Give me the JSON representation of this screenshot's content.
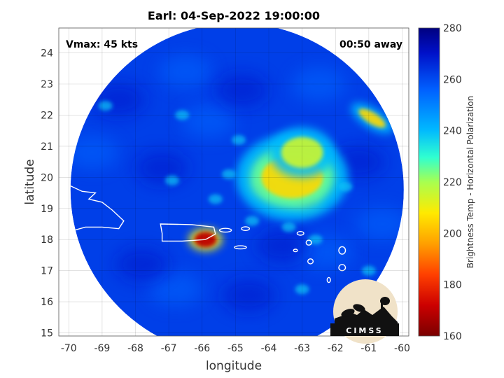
{
  "chart_data": {
    "type": "heatmap",
    "title": "Earl: 04-Sep-2022 19:00:00",
    "xlabel": "longitude",
    "ylabel": "latitude",
    "xlim": [
      -70.3,
      -59.8
    ],
    "ylim": [
      14.9,
      24.8
    ],
    "xticks": [
      -70,
      -69,
      -68,
      -67,
      -66,
      -65,
      -64,
      -63,
      -62,
      -61,
      -60
    ],
    "yticks": [
      15,
      16,
      17,
      18,
      19,
      20,
      21,
      22,
      23,
      24
    ],
    "grid": true,
    "annotations": {
      "left": "Vmax: 45 kts",
      "right": "00:50 away"
    },
    "colorbar": {
      "label": "Brightness Temp - Horizontal Polarization",
      "range": [
        160,
        280
      ],
      "ticks": [
        160,
        180,
        200,
        220,
        240,
        260,
        280
      ]
    },
    "swath": {
      "center": [
        -64.95,
        19.6
      ],
      "radius_deg": 5.0
    },
    "features": [
      {
        "name": "core",
        "lon": -64.05,
        "lat": 19.7,
        "value": 175
      },
      {
        "name": "band-south",
        "lon": -62.9,
        "lat": 19.3,
        "value": 180
      },
      {
        "name": "convection-mass",
        "lon": -63.3,
        "lat": 20.0,
        "value": 205
      },
      {
        "name": "convection-north",
        "lon": -63.0,
        "lat": 20.8,
        "value": 215
      },
      {
        "name": "northeast-band",
        "lon": -60.9,
        "lat": 21.9,
        "value": 205
      },
      {
        "name": "puerto-rico-hot",
        "lon": -65.9,
        "lat": 18.0,
        "value": 170
      }
    ],
    "background_value": 262
  },
  "logo": {
    "text": "CIMSS"
  },
  "colors": {
    "background_field": "#1a58e8",
    "colormap": [
      "#7a0000",
      "#cc0000",
      "#ff4000",
      "#ffa000",
      "#ffea00",
      "#a8ff50",
      "#30ffd0",
      "#00b8ff",
      "#0060ff",
      "#0010c8",
      "#000080"
    ]
  }
}
